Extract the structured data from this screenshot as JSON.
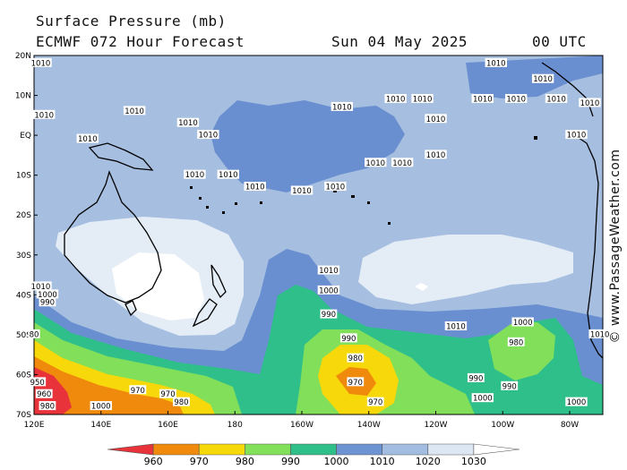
{
  "header": {
    "title": "Surface Pressure (mb)",
    "model": "ECMWF 072 Hour Forecast",
    "date": "Sun 04 May 2025",
    "time": "00 UTC"
  },
  "watermark": "© www.PassageWeather.com",
  "map": {
    "lat_labels": [
      "20N",
      "10N",
      "EQ",
      "10S",
      "20S",
      "30S",
      "40S",
      "50S",
      "60S",
      "70S"
    ],
    "lon_labels": [
      "120E",
      "140E",
      "160E",
      "180",
      "160W",
      "140W",
      "120W",
      "100W",
      "80W"
    ],
    "isobar_labels": [
      {
        "text": "1010",
        "lon": 136,
        "lat": -1
      },
      {
        "text": "1010",
        "lon": 150,
        "lat": 6
      },
      {
        "text": "1010",
        "lon": 166,
        "lat": 3
      },
      {
        "text": "1010",
        "lon": 172,
        "lat": 0
      },
      {
        "text": "1010",
        "lon": 168,
        "lat": -10
      },
      {
        "text": "1010",
        "lon": 178,
        "lat": -10
      },
      {
        "text": "1010",
        "lon": 186,
        "lat": -13
      },
      {
        "text": "1010",
        "lon": 200,
        "lat": -14
      },
      {
        "text": "1010",
        "lon": 210,
        "lat": -13
      },
      {
        "text": "1010",
        "lon": 212,
        "lat": 7
      },
      {
        "text": "1010",
        "lon": 228,
        "lat": 9
      },
      {
        "text": "1010",
        "lon": 236,
        "lat": 9
      },
      {
        "text": "1010",
        "lon": 240,
        "lat": 4
      },
      {
        "text": "1010",
        "lon": 240,
        "lat": -5
      },
      {
        "text": "1010",
        "lon": 222,
        "lat": -7
      },
      {
        "text": "1010",
        "lon": 230,
        "lat": -7
      },
      {
        "text": "1010",
        "lon": 254,
        "lat": 9
      },
      {
        "text": "1010",
        "lon": 264,
        "lat": 9
      },
      {
        "text": "1010",
        "lon": 276,
        "lat": 9
      },
      {
        "text": "1010",
        "lon": 282,
        "lat": 0
      },
      {
        "text": "1010",
        "lon": 258,
        "lat": 18
      },
      {
        "text": "1010",
        "lon": 272,
        "lat": 14
      },
      {
        "text": "1010",
        "lon": 286,
        "lat": 8
      },
      {
        "text": "1010",
        "lon": 122,
        "lat": 18
      },
      {
        "text": "1010",
        "lon": 123,
        "lat": 5
      },
      {
        "text": "1010",
        "lon": 208,
        "lat": -34
      },
      {
        "text": "1010",
        "lon": 246,
        "lat": -48
      },
      {
        "text": "1010",
        "lon": 289,
        "lat": -50
      },
      {
        "text": "1010",
        "lon": 122,
        "lat": -38
      },
      {
        "text": "1000",
        "lon": 124,
        "lat": -40
      },
      {
        "text": "1000",
        "lon": 208,
        "lat": -39
      },
      {
        "text": "1000",
        "lon": 266,
        "lat": -47
      },
      {
        "text": "1000",
        "lon": 254,
        "lat": -66
      },
      {
        "text": "1000",
        "lon": 282,
        "lat": -67
      },
      {
        "text": "1000",
        "lon": 140,
        "lat": -68
      },
      {
        "text": "990",
        "lon": 124,
        "lat": -42
      },
      {
        "text": "990",
        "lon": 208,
        "lat": -45
      },
      {
        "text": "990",
        "lon": 214,
        "lat": -51
      },
      {
        "text": "990",
        "lon": 252,
        "lat": -61
      },
      {
        "text": "990",
        "lon": 262,
        "lat": -63
      },
      {
        "text": "990",
        "lon": 290,
        "lat": -57
      },
      {
        "text": "980",
        "lon": 216,
        "lat": -56
      },
      {
        "text": "980",
        "lon": 264,
        "lat": -52
      },
      {
        "text": "980",
        "lon": 164,
        "lat": -67
      },
      {
        "text": "980",
        "lon": 124,
        "lat": -68
      },
      {
        "text": "80",
        "lon": 120,
        "lat": -50
      },
      {
        "text": "970",
        "lon": 216,
        "lat": -62
      },
      {
        "text": "970",
        "lon": 222,
        "lat": -67
      },
      {
        "text": "970",
        "lon": 151,
        "lat": -64
      },
      {
        "text": "970",
        "lon": 160,
        "lat": -65
      },
      {
        "text": "960",
        "lon": 123,
        "lat": -65
      },
      {
        "text": "950",
        "lon": 121,
        "lat": -62
      }
    ]
  },
  "legend": {
    "ticks": [
      "960",
      "970",
      "980",
      "990",
      "1000",
      "1010",
      "1020",
      "1030"
    ],
    "colors": [
      "#e8333a",
      "#f08a0c",
      "#f7d80a",
      "#82e05a",
      "#2fc08a",
      "#6d93d3",
      "#a3bde2",
      "#dde6f3",
      "#ffffff"
    ]
  },
  "colors": {
    "p1020": "#e4ecf6",
    "p1010": "#a6bfe1",
    "p1000": "#6a8fd0",
    "p990": "#2fbf8a",
    "p980": "#82df5a",
    "p970": "#f7d80a",
    "p960": "#f08a0c",
    "p950": "#e8333a",
    "high": "#ffffff",
    "land": "#000000"
  }
}
